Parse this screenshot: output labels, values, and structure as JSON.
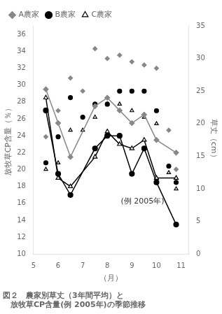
{
  "chart_data": {
    "type": "line",
    "title": "図２　農家別草丈（3年間平均）と",
    "subtitle": "　放牧草CP含量(例 2005年)の季節推移",
    "xlabel": "（月）",
    "ylabel": "放牧草CP含量（％）",
    "y2label": "草丈（cm）",
    "xlim": [
      5.0,
      11.3
    ],
    "xticks": [
      5,
      6,
      7,
      8,
      9,
      10,
      11
    ],
    "ylim": [
      10,
      37
    ],
    "yticks": [
      10,
      12,
      14,
      16,
      18,
      20,
      22,
      24,
      26,
      28,
      30,
      32,
      34,
      36
    ],
    "y2lim": [
      0,
      35
    ],
    "y2ticks": [
      0,
      5,
      10,
      15,
      20,
      25,
      30,
      35
    ],
    "grid": false,
    "legend": "upper left",
    "annotations": [
      {
        "text": "(例 2005年)",
        "x": 8.55,
        "y": 16.0
      }
    ],
    "series": [
      {
        "name": "A農家",
        "type": "line",
        "color": "#888888",
        "marker": "diamond",
        "x": [
          5.5,
          6.0,
          6.5,
          7.5,
          8.0,
          8.5,
          9.0,
          9.5,
          10.0,
          10.8
        ],
        "values": [
          29.5,
          25.5,
          21.5,
          27.5,
          28.5,
          27.0,
          25.5,
          26.5,
          23.5,
          22.0
        ]
      },
      {
        "name": "B農家",
        "type": "line",
        "color": "#000000",
        "marker": "circle",
        "x": [
          5.5,
          6.0,
          6.5,
          7.5,
          8.0,
          8.5,
          9.0,
          9.5,
          10.0,
          10.8
        ],
        "values": [
          27.0,
          19.5,
          17.0,
          22.5,
          24.0,
          24.0,
          19.5,
          22.5,
          18.5,
          13.5
        ]
      },
      {
        "name": "C農家",
        "type": "line",
        "color": "#000000",
        "marker": "open_triangle",
        "x": [
          5.5,
          6.0,
          6.5,
          7.5,
          8.0,
          8.5,
          9.0,
          9.5,
          10.0,
          10.8
        ],
        "values": [
          28.5,
          19.0,
          18.0,
          21.5,
          24.5,
          23.0,
          22.5,
          23.5,
          19.0,
          19.0
        ]
      },
      {
        "name": "A農家",
        "type": "scatter",
        "axis": "y2",
        "color": "#888888",
        "marker": "diamond",
        "x": [
          5.5,
          6.0,
          6.5,
          7.0,
          7.5,
          8.0,
          8.5,
          9.0,
          9.5,
          10.0,
          10.5,
          10.8
        ],
        "values": [
          18.0,
          22.0,
          27.0,
          25.0,
          31.5,
          30.0,
          30.5,
          29.5,
          29.0,
          28.5,
          19.0,
          13.0
        ]
      },
      {
        "name": "B農家",
        "type": "scatter",
        "axis": "y2",
        "color": "#000000",
        "marker": "circle",
        "x": [
          5.5,
          6.0,
          6.5,
          7.0,
          7.5,
          8.0,
          8.5,
          9.0,
          9.5,
          10.0,
          10.5,
          10.8
        ],
        "values": [
          14.0,
          18.0,
          24.0,
          21.0,
          23.0,
          23.0,
          25.0,
          25.0,
          25.0,
          22.0,
          13.5,
          11.0
        ]
      },
      {
        "name": "C農家",
        "type": "scatter",
        "axis": "y2",
        "color": "#000000",
        "marker": "open_triangle",
        "x": [
          5.5,
          6.0,
          6.5,
          7.0,
          7.5,
          8.0,
          8.5,
          9.0,
          9.5,
          10.0,
          10.5,
          10.8
        ],
        "values": [
          13.0,
          14.0,
          19.0,
          19.0,
          21.0,
          23.0,
          23.0,
          22.0,
          21.0,
          20.0,
          12.5,
          10.0
        ]
      }
    ]
  }
}
